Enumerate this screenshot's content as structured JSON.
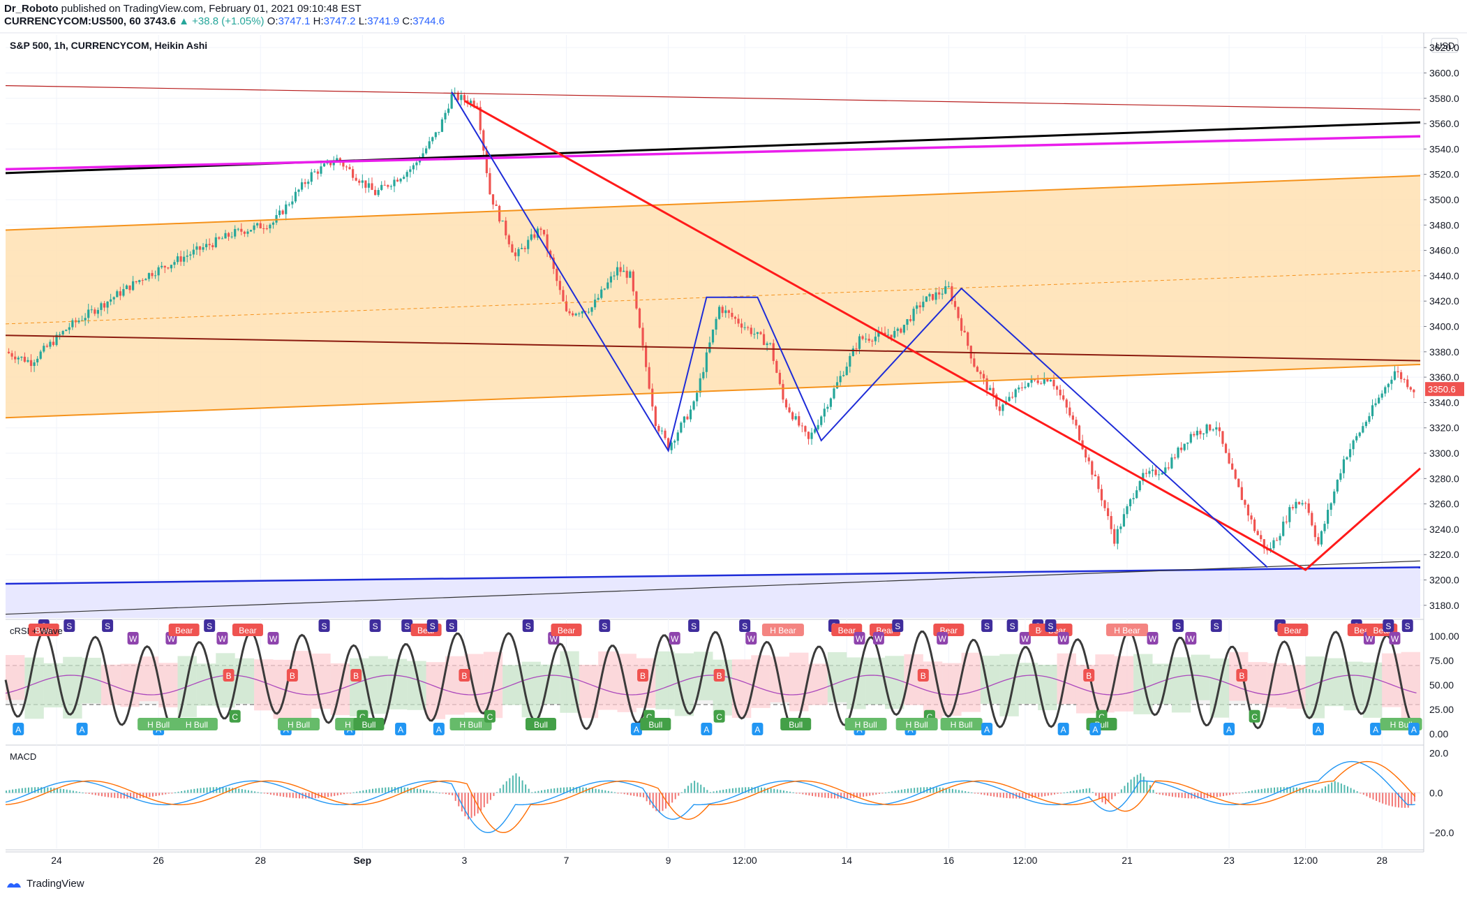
{
  "header": {
    "author": "Dr_Roboto",
    "published_text": "published on TradingView.com, February 01, 2021 09:10:48 EST",
    "symbol": "CURRENCYCOM:US500, 60",
    "last": "3743.6",
    "arrow_change": "▲ +38.8 (+1.05%)",
    "open_label": "O:",
    "open": "3747.1",
    "high_label": "H:",
    "high": "3747.2",
    "low_label": "L:",
    "low": "3741.9",
    "close_label": "C:",
    "close": "3744.6"
  },
  "footer": {
    "brand": "TradingView"
  },
  "colors": {
    "up": "#26a69a",
    "down": "#ef5350",
    "channel_fill": "#ffe0b2",
    "channel_line": "#f5921b",
    "magenta": "#e91eeb",
    "red_line": "#ff1a1a",
    "blue_line": "#1e2cd8",
    "support_fill": "#e8e8ff",
    "macd": "#2196f3",
    "signal": "#ff6d00"
  },
  "chart_data": [
    {
      "type": "candlestick",
      "title": "S&P 500, 1h, CURRENCYCOM, Heikin Ashi",
      "currency": "USD",
      "last_price_label": "3350.6",
      "ylim": [
        3170,
        3630
      ],
      "y_ticks": [
        "3620.0",
        "3600.0",
        "3580.0",
        "3560.0",
        "3540.0",
        "3520.0",
        "3500.0",
        "3480.0",
        "3460.0",
        "3440.0",
        "3420.0",
        "3400.0",
        "3380.0",
        "3360.0",
        "3340.0",
        "3320.0",
        "3300.0",
        "3280.0",
        "3260.0",
        "3240.0",
        "3220.0",
        "3200.0",
        "3180.0"
      ],
      "x_ticks": [
        {
          "label": "24",
          "t": 2
        },
        {
          "label": "26",
          "t": 10
        },
        {
          "label": "28",
          "t": 18
        },
        {
          "label": "Sep",
          "t": 26
        },
        {
          "label": "3",
          "t": 34
        },
        {
          "label": "7",
          "t": 42
        },
        {
          "label": "9",
          "t": 50
        },
        {
          "label": "12:00",
          "t": 56
        },
        {
          "label": "14",
          "t": 64
        },
        {
          "label": "16",
          "t": 72
        },
        {
          "label": "12:00",
          "t": 78
        },
        {
          "label": "21",
          "t": 86
        },
        {
          "label": "23",
          "t": 94
        },
        {
          "label": "12:00",
          "t": 100
        },
        {
          "label": "28",
          "t": 106
        }
      ],
      "t_range": [
        -2,
        109
      ],
      "price_path": [
        [
          -2,
          3380
        ],
        [
          0,
          3372
        ],
        [
          3,
          3400
        ],
        [
          6,
          3420
        ],
        [
          9,
          3440
        ],
        [
          12,
          3455
        ],
        [
          16,
          3474
        ],
        [
          19,
          3482
        ],
        [
          22,
          3520
        ],
        [
          24,
          3532
        ],
        [
          27,
          3505
        ],
        [
          30,
          3526
        ],
        [
          32,
          3555
        ],
        [
          33,
          3582
        ],
        [
          35,
          3576
        ],
        [
          36,
          3505
        ],
        [
          38,
          3455
        ],
        [
          40,
          3478
        ],
        [
          42,
          3410
        ],
        [
          44,
          3415
        ],
        [
          46,
          3445
        ],
        [
          47,
          3440
        ],
        [
          49,
          3325
        ],
        [
          50,
          3305
        ],
        [
          52,
          3338
        ],
        [
          54,
          3415
        ],
        [
          56,
          3400
        ],
        [
          58,
          3385
        ],
        [
          59,
          3342
        ],
        [
          61,
          3310
        ],
        [
          63,
          3350
        ],
        [
          65,
          3390
        ],
        [
          68,
          3395
        ],
        [
          70,
          3420
        ],
        [
          72,
          3430
        ],
        [
          74,
          3370
        ],
        [
          76,
          3335
        ],
        [
          78,
          3355
        ],
        [
          80,
          3360
        ],
        [
          82,
          3320
        ],
        [
          84,
          3265
        ],
        [
          85,
          3232
        ],
        [
          87,
          3280
        ],
        [
          89,
          3288
        ],
        [
          91,
          3315
        ],
        [
          93,
          3322
        ],
        [
          94,
          3290
        ],
        [
          96,
          3240
        ],
        [
          97,
          3222
        ],
        [
          98,
          3238
        ],
        [
          99,
          3260
        ],
        [
          100,
          3262
        ],
        [
          101,
          3228
        ],
        [
          103,
          3295
        ],
        [
          105,
          3330
        ],
        [
          107,
          3365
        ],
        [
          109,
          3345
        ]
      ],
      "lines": [
        {
          "name": "channel-upper",
          "points": [
            [
              -2,
              3476
            ],
            [
              109,
              3519
            ]
          ],
          "color": "#f5921b"
        },
        {
          "name": "channel-lower",
          "points": [
            [
              -2,
              3328
            ],
            [
              109,
              3370
            ]
          ],
          "color": "#f5921b"
        },
        {
          "name": "channel-mid",
          "points": [
            [
              -2,
              3402
            ],
            [
              109,
              3444
            ]
          ],
          "color": "#f5921b",
          "dashed": true
        },
        {
          "name": "black-top",
          "points": [
            [
              -2,
              3521
            ],
            [
              109,
              3561
            ]
          ],
          "color": "#000000"
        },
        {
          "name": "magenta",
          "points": [
            [
              -2,
              3524
            ],
            [
              109,
              3550
            ]
          ],
          "color": "#e91eeb"
        },
        {
          "name": "dark-red-top",
          "points": [
            [
              -2,
              3590
            ],
            [
              109,
              3571
            ]
          ],
          "color": "#b71c1c"
        },
        {
          "name": "dark-red-mid",
          "points": [
            [
              -2,
              3393
            ],
            [
              109,
              3373
            ]
          ],
          "color": "#8b1a0e"
        },
        {
          "name": "blue-support",
          "points": [
            [
              -2,
              3197
            ],
            [
              109,
              3210
            ]
          ],
          "color": "#1e2cd8"
        },
        {
          "name": "black-support",
          "points": [
            [
              -2,
              3173
            ],
            [
              109,
              3215
            ]
          ],
          "color": "#333333"
        },
        {
          "name": "red-zigzag",
          "points": [
            [
              34,
              3578
            ],
            [
              100,
              3208
            ],
            [
              109,
              3288
            ]
          ],
          "color": "#ff1a1a"
        },
        {
          "name": "blue-zigzag",
          "points": [
            [
              33,
              3585
            ],
            [
              50,
              3302
            ],
            [
              53,
              3423
            ],
            [
              57,
              3423
            ],
            [
              62,
              3310
            ],
            [
              73,
              3430
            ],
            [
              97,
              3210
            ]
          ],
          "color": "#1e2cd8"
        }
      ]
    },
    {
      "type": "line",
      "title": "cRSI + Wave",
      "ylim": [
        -10,
        115
      ],
      "y_ticks": [
        "100.00",
        "75.00",
        "50.00",
        "25.00",
        "0.00"
      ],
      "levels": [
        70,
        30
      ],
      "labels": [
        {
          "text": "A",
          "t": -1
        },
        {
          "text": "S",
          "t": 1
        },
        {
          "text": "Bear",
          "t": 1
        },
        {
          "text": "S",
          "t": 3
        },
        {
          "text": "A",
          "t": 4
        },
        {
          "text": "S",
          "t": 6
        },
        {
          "text": "W",
          "t": 8
        },
        {
          "text": "A",
          "t": 10
        },
        {
          "text": "H Bull",
          "t": 10
        },
        {
          "text": "W",
          "t": 11
        },
        {
          "text": "Bear",
          "t": 12
        },
        {
          "text": "H Bull",
          "t": 13
        },
        {
          "text": "S",
          "t": 14
        },
        {
          "text": "W",
          "t": 15
        },
        {
          "text": "B",
          "t": 15.5
        },
        {
          "text": "C",
          "t": 16
        },
        {
          "text": "Bear",
          "t": 17
        },
        {
          "text": "W",
          "t": 19
        },
        {
          "text": "A",
          "t": 20
        },
        {
          "text": "B",
          "t": 20.5
        },
        {
          "text": "H Bull",
          "t": 21
        },
        {
          "text": "S",
          "t": 23
        },
        {
          "text": "A",
          "t": 25
        },
        {
          "text": "B",
          "t": 25.5
        },
        {
          "text": "C",
          "t": 26
        },
        {
          "text": "H Bull",
          "t": 25.5
        },
        {
          "text": "Bull",
          "t": 26.5
        },
        {
          "text": "S",
          "t": 27
        },
        {
          "text": "A",
          "t": 29
        },
        {
          "text": "S",
          "t": 29.5
        },
        {
          "text": "Bear",
          "t": 31
        },
        {
          "text": "S",
          "t": 31.5
        },
        {
          "text": "A",
          "t": 32
        },
        {
          "text": "S",
          "t": 33
        },
        {
          "text": "H Bull",
          "t": 34.5
        },
        {
          "text": "B",
          "t": 34
        },
        {
          "text": "C",
          "t": 36
        },
        {
          "text": "S",
          "t": 39
        },
        {
          "text": "Bull",
          "t": 40
        },
        {
          "text": "W",
          "t": 41
        },
        {
          "text": "Bear",
          "t": 42
        },
        {
          "text": "S",
          "t": 45
        },
        {
          "text": "B",
          "t": 48
        },
        {
          "text": "C",
          "t": 48.5
        },
        {
          "text": "A",
          "t": 47.5
        },
        {
          "text": "Bull",
          "t": 49
        },
        {
          "text": "W",
          "t": 50.5
        },
        {
          "text": "S",
          "t": 52
        },
        {
          "text": "A",
          "t": 53
        },
        {
          "text": "C",
          "t": 54
        },
        {
          "text": "B",
          "t": 54
        },
        {
          "text": "S",
          "t": 56
        },
        {
          "text": "W",
          "t": 56.5
        },
        {
          "text": "A",
          "t": 57
        },
        {
          "text": "H Bear",
          "t": 59
        },
        {
          "text": "Bull",
          "t": 60
        },
        {
          "text": "S",
          "t": 63
        },
        {
          "text": "Bear",
          "t": 64
        },
        {
          "text": "W",
          "t": 65
        },
        {
          "text": "A",
          "t": 65
        },
        {
          "text": "H Bull",
          "t": 65.5
        },
        {
          "text": "Bear",
          "t": 67
        },
        {
          "text": "W",
          "t": 66.5
        },
        {
          "text": "S",
          "t": 68
        },
        {
          "text": "B",
          "t": 70
        },
        {
          "text": "C",
          "t": 70.5
        },
        {
          "text": "A",
          "t": 69
        },
        {
          "text": "H Bull",
          "t": 69.5
        },
        {
          "text": "Bear",
          "t": 72
        },
        {
          "text": "W",
          "t": 71.5
        },
        {
          "text": "H Bull",
          "t": 73
        },
        {
          "text": "S",
          "t": 75
        },
        {
          "text": "A",
          "t": 75
        },
        {
          "text": "S",
          "t": 77
        },
        {
          "text": "W",
          "t": 78
        },
        {
          "text": "S",
          "t": 79
        },
        {
          "text": "Bear",
          "t": 79.5
        },
        {
          "text": "Bear",
          "t": 80.5
        },
        {
          "text": "S",
          "t": 80
        },
        {
          "text": "W",
          "t": 81
        },
        {
          "text": "A",
          "t": 81
        },
        {
          "text": "B",
          "t": 83
        },
        {
          "text": "C",
          "t": 84
        },
        {
          "text": "Bull",
          "t": 84
        },
        {
          "text": "A",
          "t": 83.5
        },
        {
          "text": "H Bear",
          "t": 86
        },
        {
          "text": "W",
          "t": 88
        },
        {
          "text": "S",
          "t": 90
        },
        {
          "text": "W",
          "t": 91
        },
        {
          "text": "S",
          "t": 93
        },
        {
          "text": "A",
          "t": 94
        },
        {
          "text": "B",
          "t": 95
        },
        {
          "text": "C",
          "t": 96
        },
        {
          "text": "S",
          "t": 98
        },
        {
          "text": "Bear",
          "t": 99
        },
        {
          "text": "A",
          "t": 101
        },
        {
          "text": "S",
          "t": 104
        },
        {
          "text": "Bear",
          "t": 104.5
        },
        {
          "text": "W",
          "t": 105
        },
        {
          "text": "Bear",
          "t": 106
        },
        {
          "text": "A",
          "t": 105.5
        },
        {
          "text": "S",
          "t": 106.5
        },
        {
          "text": "W",
          "t": 107
        },
        {
          "text": "H Bull",
          "t": 107.5
        },
        {
          "text": "S",
          "t": 108
        },
        {
          "text": "A",
          "t": 108.5
        }
      ]
    },
    {
      "type": "line",
      "title": "MACD",
      "ylim": [
        -28,
        23
      ],
      "y_ticks": [
        "20.0",
        "0.0",
        "−20.0"
      ],
      "series": [
        {
          "name": "MACD",
          "color": "#2196f3"
        },
        {
          "name": "Signal",
          "color": "#ff6d00"
        },
        {
          "name": "Histogram"
        }
      ]
    }
  ]
}
